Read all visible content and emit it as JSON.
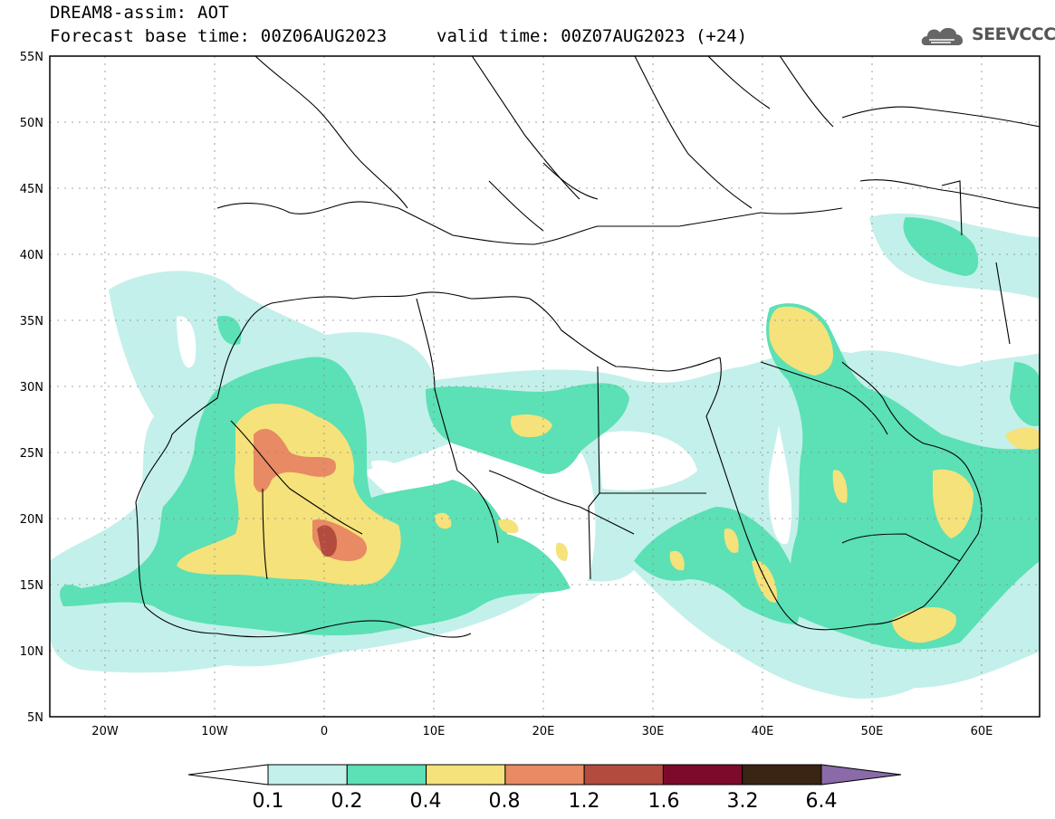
{
  "header": {
    "title": "DREAM8-assim: AOT",
    "base_time": "Forecast base time: 00Z06AUG2023",
    "valid_time": "valid time: 00Z07AUG2023 (+24)",
    "logo_text": "SEEVCCC",
    "logo_icon": "cloud-icon"
  },
  "map": {
    "lon_range": [
      -25,
      65
    ],
    "lat_range": [
      5,
      55
    ],
    "lat_labels": [
      "55N",
      "50N",
      "45N",
      "40N",
      "35N",
      "30N",
      "25N",
      "20N",
      "15N",
      "10N",
      "5N"
    ],
    "lon_labels": [
      "20W",
      "10W",
      "0",
      "10E",
      "20E",
      "30E",
      "40E",
      "50E",
      "60E"
    ],
    "grid": true
  },
  "colorbar": {
    "labels": [
      "0.1",
      "0.2",
      "0.4",
      "0.8",
      "1.2",
      "1.6",
      "3.2",
      "6.4"
    ],
    "colors": [
      "#ffffff",
      "#c3f0ea",
      "#5ce0b5",
      "#f5e27a",
      "#e88a64",
      "#b34c3e",
      "#7d0a2b",
      "#3a2414",
      "#8a6aa8"
    ]
  }
}
